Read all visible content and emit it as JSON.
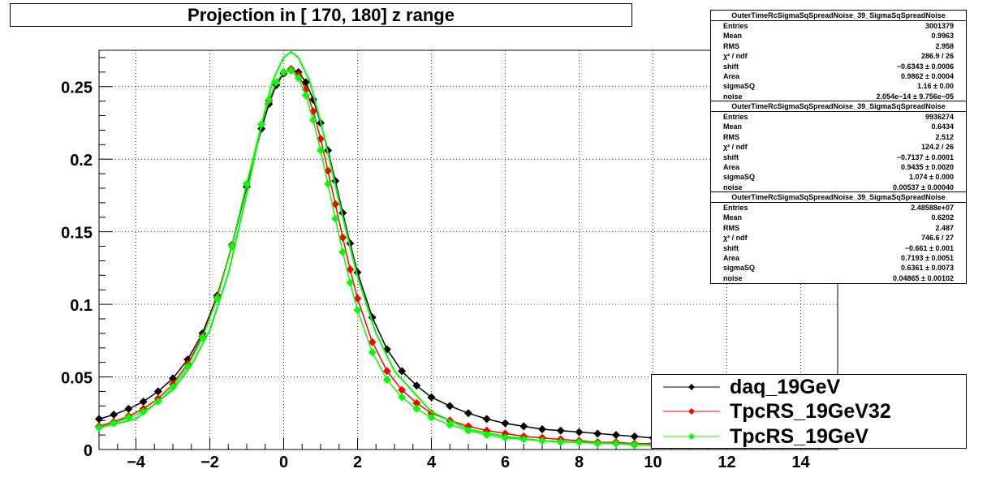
{
  "title": "Projection in [ 170, 180] z range",
  "chart_data": {
    "type": "scatter",
    "xlim": [
      -5,
      15
    ],
    "ylim": [
      0,
      0.275
    ],
    "x_ticks": [
      -4,
      -2,
      0,
      2,
      4,
      6,
      8,
      10,
      12,
      14
    ],
    "x_tick_labels": [
      "−4",
      "−2",
      "0",
      "2",
      "4",
      "6",
      "8",
      "10",
      "12",
      "14"
    ],
    "y_ticks": [
      0,
      0.05,
      0.1,
      0.15,
      0.2,
      0.25
    ],
    "y_tick_labels": [
      "0",
      "0.05",
      "0.1",
      "0.15",
      "0.2",
      "0.25"
    ],
    "grid": true,
    "legend_position": "bottom-right",
    "series": [
      {
        "name": "daq_19GeV",
        "color": "#000000",
        "x": [
          -5.0,
          -4.6,
          -4.2,
          -3.8,
          -3.4,
          -3.0,
          -2.6,
          -2.2,
          -1.8,
          -1.4,
          -1.0,
          -0.6,
          -0.4,
          -0.2,
          0.0,
          0.2,
          0.4,
          0.6,
          0.8,
          1.0,
          1.2,
          1.4,
          1.6,
          1.8,
          2.0,
          2.4,
          2.8,
          3.2,
          3.6,
          4.0,
          4.5,
          5.0,
          5.5,
          6.0,
          6.5,
          7.0,
          7.5,
          8.0,
          8.5,
          9.0,
          9.5,
          10.0
        ],
        "y": [
          0.021,
          0.024,
          0.028,
          0.033,
          0.04,
          0.049,
          0.062,
          0.08,
          0.106,
          0.14,
          0.181,
          0.221,
          0.238,
          0.251,
          0.259,
          0.262,
          0.26,
          0.253,
          0.241,
          0.225,
          0.206,
          0.185,
          0.163,
          0.142,
          0.122,
          0.091,
          0.069,
          0.054,
          0.044,
          0.036,
          0.03,
          0.025,
          0.021,
          0.018,
          0.016,
          0.014,
          0.013,
          0.012,
          0.011,
          0.01,
          0.009,
          0.008
        ]
      },
      {
        "name": "TpcRS_19GeV32",
        "color": "#ff0000",
        "x": [
          -5.0,
          -4.6,
          -4.2,
          -3.8,
          -3.4,
          -3.0,
          -2.6,
          -2.2,
          -1.8,
          -1.4,
          -1.0,
          -0.6,
          -0.4,
          -0.2,
          0.0,
          0.2,
          0.4,
          0.6,
          0.8,
          1.0,
          1.2,
          1.4,
          1.6,
          1.8,
          2.0,
          2.4,
          2.8,
          3.2,
          3.6,
          4.0,
          4.5,
          5.0,
          5.5,
          6.0,
          6.5,
          7.0,
          7.5,
          8.0,
          8.5,
          9.0,
          9.5,
          10.0
        ],
        "y": [
          0.016,
          0.019,
          0.023,
          0.028,
          0.035,
          0.045,
          0.059,
          0.078,
          0.105,
          0.141,
          0.183,
          0.224,
          0.24,
          0.253,
          0.26,
          0.262,
          0.258,
          0.248,
          0.233,
          0.214,
          0.192,
          0.169,
          0.146,
          0.124,
          0.104,
          0.074,
          0.054,
          0.041,
          0.032,
          0.025,
          0.02,
          0.016,
          0.013,
          0.011,
          0.009,
          0.008,
          0.007,
          0.006,
          0.005,
          0.005,
          0.004,
          0.004
        ]
      },
      {
        "name": "TpcRS_19GeV",
        "color": "#00ff00",
        "x": [
          -5.0,
          -4.6,
          -4.2,
          -3.8,
          -3.4,
          -3.0,
          -2.6,
          -2.2,
          -1.8,
          -1.4,
          -1.0,
          -0.6,
          -0.4,
          -0.2,
          0.0,
          0.2,
          0.4,
          0.6,
          0.8,
          1.0,
          1.2,
          1.4,
          1.6,
          1.8,
          2.0,
          2.4,
          2.8,
          3.2,
          3.6,
          4.0,
          4.5,
          5.0,
          5.5,
          6.0,
          6.5,
          7.0,
          7.5,
          8.0,
          8.5,
          9.0,
          9.5,
          10.0
        ],
        "y": [
          0.015,
          0.018,
          0.022,
          0.026,
          0.033,
          0.043,
          0.057,
          0.077,
          0.104,
          0.14,
          0.183,
          0.224,
          0.241,
          0.253,
          0.26,
          0.261,
          0.256,
          0.244,
          0.227,
          0.206,
          0.183,
          0.159,
          0.136,
          0.115,
          0.096,
          0.067,
          0.048,
          0.036,
          0.028,
          0.022,
          0.017,
          0.013,
          0.01,
          0.008,
          0.007,
          0.006,
          0.005,
          0.005,
          0.004,
          0.004,
          0.003,
          0.003
        ]
      }
    ],
    "fit_curve_color": "#00ff00",
    "fit_curve": {
      "x": [
        -5.0,
        -4.0,
        -3.0,
        -2.5,
        -2.0,
        -1.5,
        -1.0,
        -0.6,
        -0.3,
        0.0,
        0.2,
        0.4,
        0.7,
        1.0,
        1.3,
        1.6,
        2.0,
        2.5,
        3.0,
        4.0,
        5.0,
        6.0,
        7.0,
        8.0,
        9.0,
        10.0
      ],
      "y": [
        0.015,
        0.021,
        0.041,
        0.058,
        0.082,
        0.121,
        0.176,
        0.224,
        0.254,
        0.27,
        0.274,
        0.27,
        0.254,
        0.226,
        0.193,
        0.16,
        0.119,
        0.08,
        0.054,
        0.026,
        0.014,
        0.009,
        0.006,
        0.005,
        0.004,
        0.003
      ]
    }
  },
  "stats_boxes": [
    {
      "title": "OuterTimeRcSigmaSqSpreadNoise_39_SigmaSqSpreadNoise",
      "rows": [
        {
          "label": "Entries",
          "value": "3001379"
        },
        {
          "label": "Mean",
          "value": "0.9963"
        },
        {
          "label": "RMS",
          "value": "2.958"
        },
        {
          "label": "χ² / ndf",
          "value": "286.9 / 26"
        },
        {
          "label": "shift",
          "value": "−0.6343 ± 0.0006"
        },
        {
          "label": "Area",
          "value": "0.9862 ± 0.0004"
        },
        {
          "label": "sigmaSQ",
          "value": "1.16 ± 0.00"
        },
        {
          "label": "noise",
          "value": "2.054e−14 ± 9.756e−05"
        }
      ]
    },
    {
      "title": "OuterTimeRcSigmaSqSpreadNoise_39_SigmaSqSpreadNoise",
      "rows": [
        {
          "label": "Entries",
          "value": "9936274"
        },
        {
          "label": "Mean",
          "value": "0.6434"
        },
        {
          "label": "RMS",
          "value": "2.512"
        },
        {
          "label": "χ² / ndf",
          "value": "124.2 / 26"
        },
        {
          "label": "shift",
          "value": "−0.7137 ± 0.0001"
        },
        {
          "label": "Area",
          "value": "0.9435 ± 0.0020"
        },
        {
          "label": "sigmaSQ",
          "value": "1.074 ± 0.000"
        },
        {
          "label": "noise",
          "value": "0.00537 ± 0.00040"
        }
      ]
    },
    {
      "title": "OuterTimeRcSigmaSqSpreadNoise_39_SigmaSqSpreadNoise",
      "rows": [
        {
          "label": "Entries",
          "value": "2.48588e+07"
        },
        {
          "label": "Mean",
          "value": "0.6202"
        },
        {
          "label": "RMS",
          "value": "2.487"
        },
        {
          "label": "χ² / ndf",
          "value": "746.6 / 27"
        },
        {
          "label": "shift",
          "value": "−0.661 ± 0.001"
        },
        {
          "label": "Area",
          "value": "0.7193 ± 0.0051"
        },
        {
          "label": "sigmaSQ",
          "value": "0.6361 ± 0.0073"
        },
        {
          "label": "noise",
          "value": "0.04865 ± 0.00102"
        }
      ]
    }
  ]
}
